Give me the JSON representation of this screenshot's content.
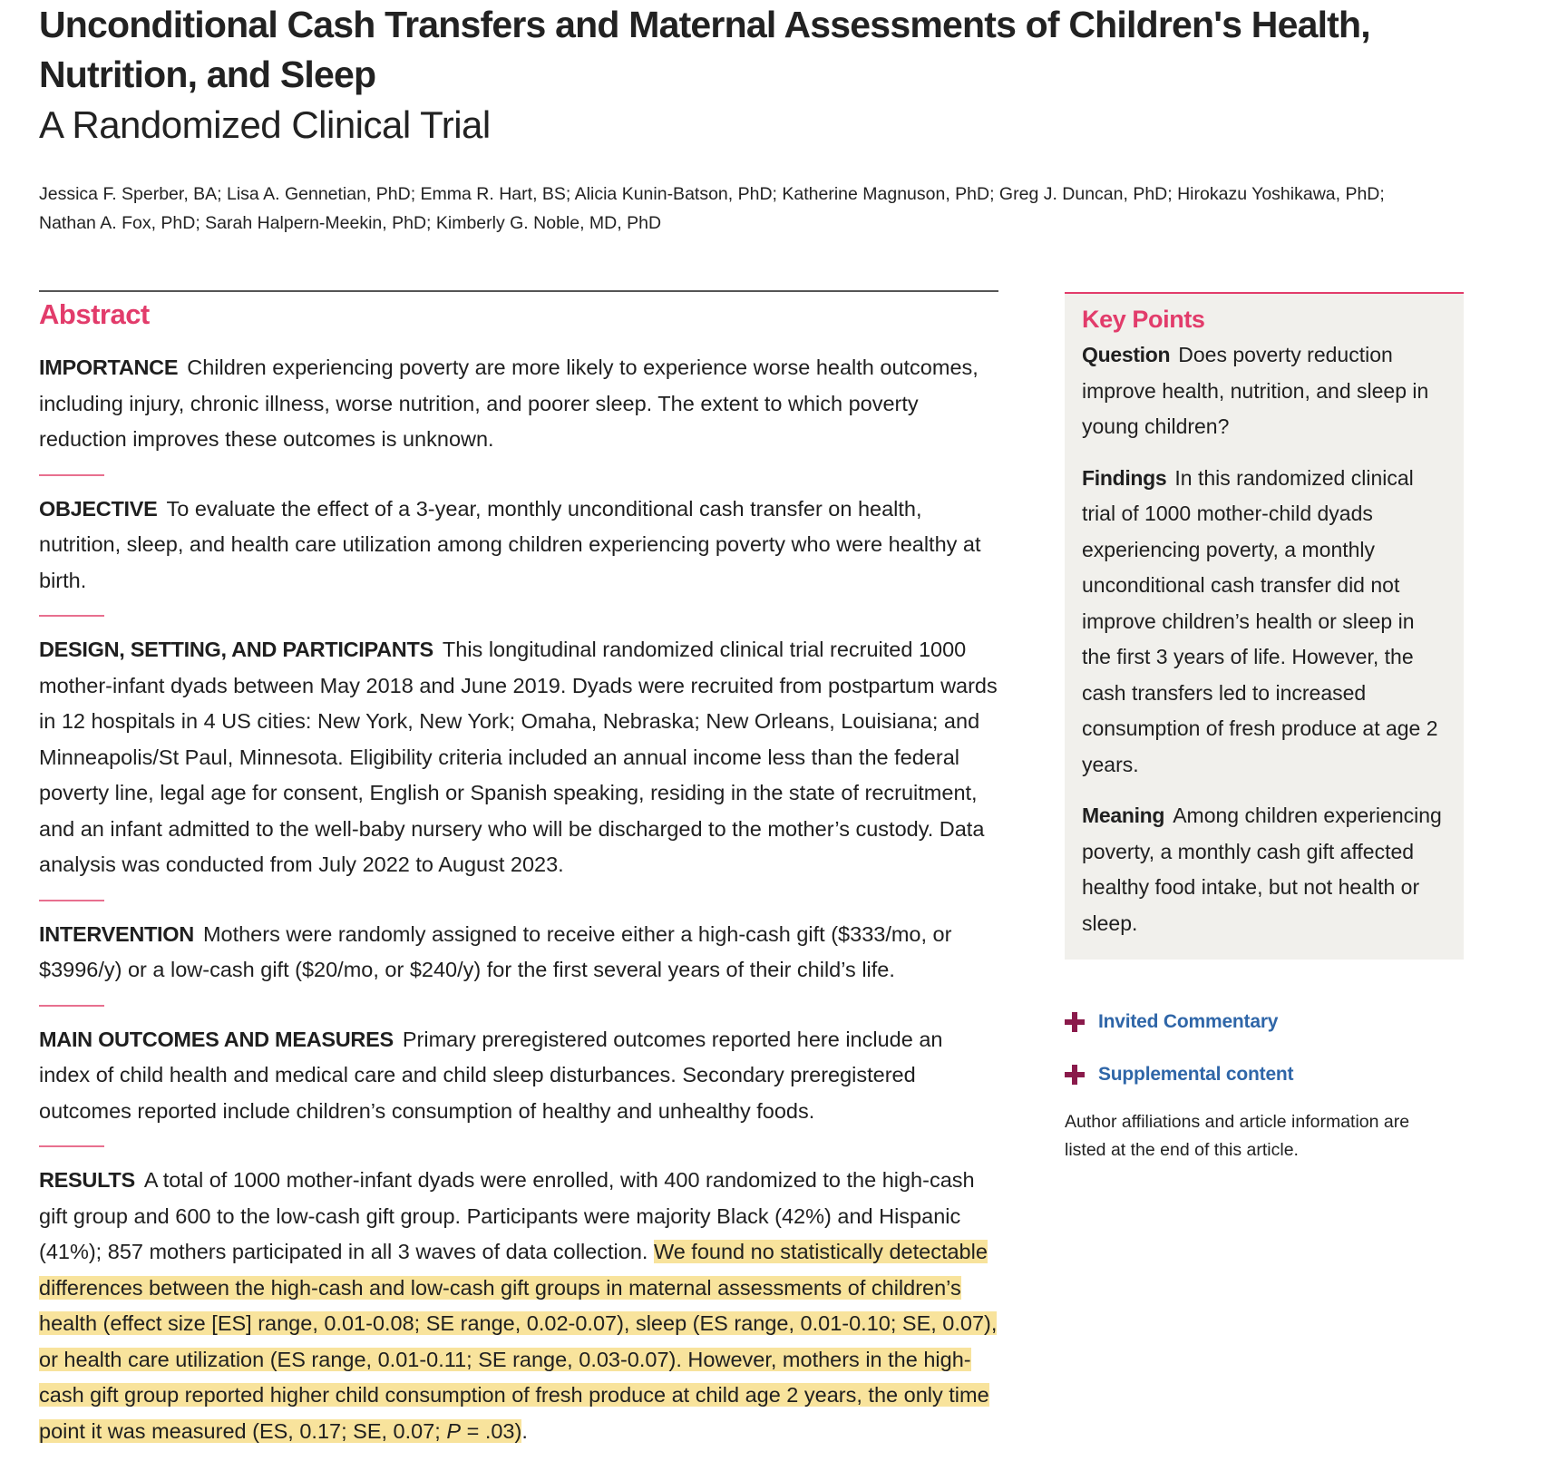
{
  "article": {
    "title": "Unconditional Cash Transfers and Maternal Assessments of Children's Health, Nutrition, and Sleep",
    "subtitle": "A Randomized Clinical Trial",
    "authors_line1": "Jessica F. Sperber, BA; Lisa A. Gennetian, PhD; Emma R. Hart, BS; Alicia Kunin-Batson, PhD; Katherine Magnuson, PhD; Greg J. Duncan, PhD; Hirokazu Yoshikawa, PhD;",
    "authors_line2": "Nathan A. Fox, PhD; Sarah Halpern-Meekin, PhD; Kimberly G. Noble, MD, PhD"
  },
  "abstract": {
    "heading": "Abstract",
    "importance": {
      "label": "IMPORTANCE",
      "text": "Children experiencing poverty are more likely to experience worse health outcomes, including injury, chronic illness, worse nutrition, and poorer sleep. The extent to which poverty reduction improves these outcomes is unknown."
    },
    "objective": {
      "label": "OBJECTIVE",
      "text": "To evaluate the effect of a 3-year, monthly unconditional cash transfer on health, nutrition, sleep, and health care utilization among children experiencing poverty who were healthy at birth."
    },
    "design": {
      "label": "DESIGN, SETTING, AND PARTICIPANTS",
      "text": "This longitudinal randomized clinical trial recruited 1000 mother-infant dyads between May 2018 and June 2019. Dyads were recruited from postpartum wards in 12 hospitals in 4 US cities: New York, New York; Omaha, Nebraska; New Orleans, Louisiana; and Minneapolis/St Paul, Minnesota. Eligibility criteria included an annual income less than the federal poverty line, legal age for consent, English or Spanish speaking, residing in the state of recruitment, and an infant admitted to the well-baby nursery who will be discharged to the mother’s custody. Data analysis was conducted from July 2022 to August 2023."
    },
    "intervention": {
      "label": "INTERVENTION",
      "text": "Mothers were randomly assigned to receive either a high-cash gift ($333/mo, or $3996/y) or a low-cash gift ($20/mo, or $240/y) for the first several years of their child’s life."
    },
    "outcomes": {
      "label": "MAIN OUTCOMES AND MEASURES",
      "text": "Primary preregistered outcomes reported here include an index of child health and medical care and child sleep disturbances. Secondary preregistered outcomes reported include children’s consumption of healthy and unhealthy foods."
    },
    "results": {
      "label": "RESULTS",
      "text": "A total of 1000 mother-infant dyads were enrolled, with 400 randomized to the high-cash gift group and 600 to the low-cash gift group. Participants were majority Black (42%) and Hispanic (41%); 857 mothers participated in all 3 waves of data collection.",
      "highlighted_text": "We found no statistically detectable differences between the high-cash and low-cash gift groups in maternal assessments of children’s health (effect size [ES] range, 0.01-0.08; SE range, 0.02-0.07), sleep (ES range, 0.01-0.10; SE, 0.07), or health care utilization (ES range, 0.01-0.11; SE range, 0.03-0.07). However, mothers in the high-cash gift group reported higher child consumption of fresh produce at child age 2 years, the only time point it was measured (ES, 0.17; SE, 0.07;",
      "p_symbol": "P",
      "p_value": " = .03)",
      "end": "."
    }
  },
  "key_points": {
    "heading": "Key Points",
    "question": {
      "label": "Question",
      "text": "Does poverty reduction improve health, nutrition, and sleep in young children?"
    },
    "findings": {
      "label": "Findings",
      "text": "In this randomized clinical trial of 1000 mother-child dyads experiencing poverty, a monthly unconditional cash transfer did not improve children’s health or sleep in the first 3 years of life. However, the cash transfers led to increased consumption of fresh produce at age 2 years."
    },
    "meaning": {
      "label": "Meaning",
      "text": "Among children experiencing poverty, a monthly cash gift affected healthy food intake, but not health or sleep."
    }
  },
  "sidebar": {
    "links": [
      {
        "label": "Invited Commentary",
        "icon": "plus-icon"
      },
      {
        "label": "Supplemental content",
        "icon": "plus-icon"
      }
    ],
    "affiliations_note": "Author affiliations and article information are listed at the end of this article."
  },
  "colors": {
    "accent_pink": "#e23c6b",
    "link_blue": "#2f66a8",
    "plus_maroon": "#8a1a4b",
    "highlight_yellow": "#f8e39c",
    "keypoints_bg": "#f1f0ec"
  }
}
